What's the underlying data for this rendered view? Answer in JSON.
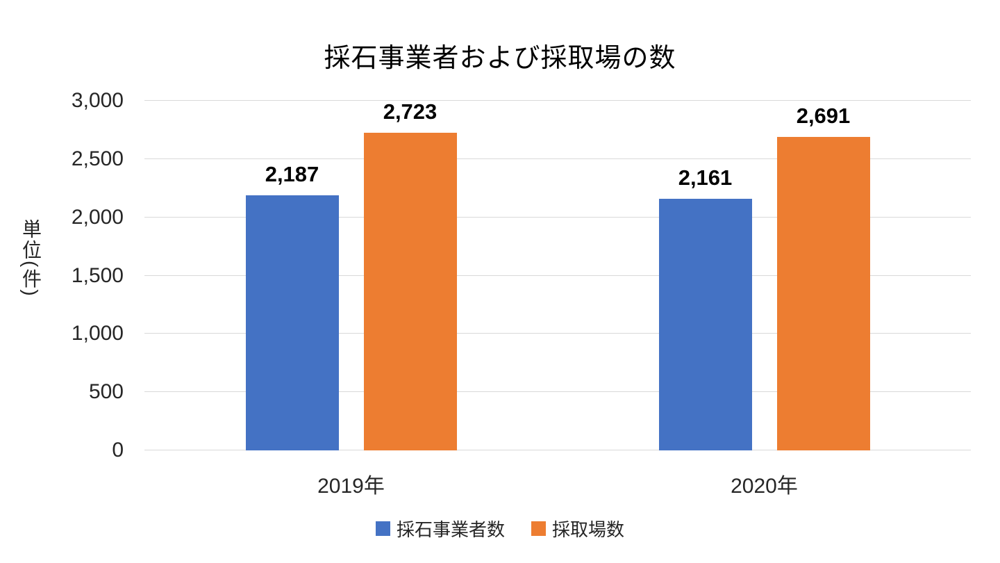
{
  "chart_data": {
    "type": "bar",
    "title": "採石事業者および採取場の数",
    "ylabel": "単位(件)",
    "categories": [
      "2019年",
      "2020年"
    ],
    "series": [
      {
        "name": "採石事業者数",
        "color": "#4472C4",
        "values": [
          2187,
          2161
        ],
        "value_labels": [
          "2,187",
          "2,161"
        ]
      },
      {
        "name": "採取場数",
        "color": "#ED7D31",
        "values": [
          2723,
          2691
        ],
        "value_labels": [
          "2,723",
          "2,691"
        ]
      }
    ],
    "ylim": [
      0,
      3000
    ],
    "yticks": [
      0,
      500,
      1000,
      1500,
      2000,
      2500,
      3000
    ],
    "ytick_labels": [
      "0",
      "500",
      "1,000",
      "1,500",
      "2,000",
      "2,500",
      "3,000"
    ],
    "grid": true,
    "legend_position": "bottom",
    "colors": {
      "gridline": "#D9D9D9",
      "axis_text": "#262626",
      "value_label_text": "#000000",
      "background": "#FFFFFF"
    }
  }
}
